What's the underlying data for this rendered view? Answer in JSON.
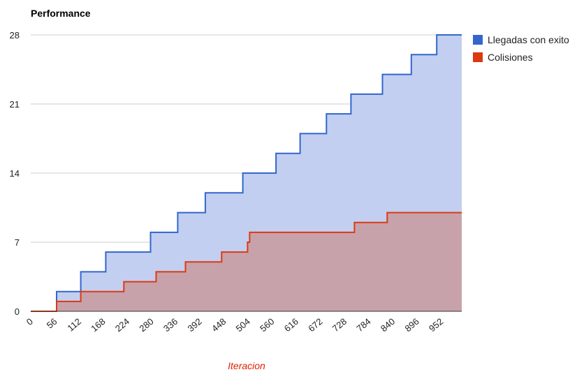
{
  "chart_data": {
    "type": "area",
    "title": "Performance",
    "xlabel": "Iteracion",
    "ylabel": "",
    "xlim": [
      0,
      1000
    ],
    "ylim": [
      0,
      28
    ],
    "yticks": [
      0,
      7,
      14,
      21,
      28
    ],
    "xticks": [
      0,
      56,
      112,
      168,
      224,
      280,
      336,
      392,
      448,
      504,
      560,
      616,
      672,
      728,
      784,
      840,
      896,
      952
    ],
    "grid": true,
    "legend_position": "right",
    "step": true,
    "series": [
      {
        "name": "Llegadas con exito",
        "line_color": "#3366cc",
        "fill_color": "#c2cff0",
        "points": [
          [
            0,
            0
          ],
          [
            60,
            0
          ],
          [
            60,
            2
          ],
          [
            116,
            2
          ],
          [
            116,
            4
          ],
          [
            174,
            4
          ],
          [
            174,
            6
          ],
          [
            278,
            6
          ],
          [
            278,
            8
          ],
          [
            341,
            8
          ],
          [
            341,
            10
          ],
          [
            405,
            10
          ],
          [
            405,
            12
          ],
          [
            492,
            12
          ],
          [
            492,
            14
          ],
          [
            569,
            14
          ],
          [
            569,
            16
          ],
          [
            625,
            16
          ],
          [
            625,
            18
          ],
          [
            686,
            18
          ],
          [
            686,
            20
          ],
          [
            743,
            20
          ],
          [
            743,
            22
          ],
          [
            816,
            22
          ],
          [
            816,
            24
          ],
          [
            883,
            24
          ],
          [
            883,
            26
          ],
          [
            942,
            26
          ],
          [
            942,
            28
          ],
          [
            1000,
            28
          ]
        ]
      },
      {
        "name": "Colisiones",
        "line_color": "#dc3912",
        "fill_color": "#c8a2aa",
        "points": [
          [
            0,
            0
          ],
          [
            60,
            0
          ],
          [
            60,
            1
          ],
          [
            116,
            1
          ],
          [
            116,
            2
          ],
          [
            216,
            2
          ],
          [
            216,
            3
          ],
          [
            291,
            3
          ],
          [
            291,
            4
          ],
          [
            359,
            4
          ],
          [
            359,
            5
          ],
          [
            443,
            5
          ],
          [
            443,
            6
          ],
          [
            503,
            6
          ],
          [
            503,
            7
          ],
          [
            508,
            7
          ],
          [
            508,
            8
          ],
          [
            751,
            8
          ],
          [
            751,
            9
          ],
          [
            827,
            9
          ],
          [
            827,
            10
          ],
          [
            1000,
            10
          ]
        ]
      }
    ]
  }
}
